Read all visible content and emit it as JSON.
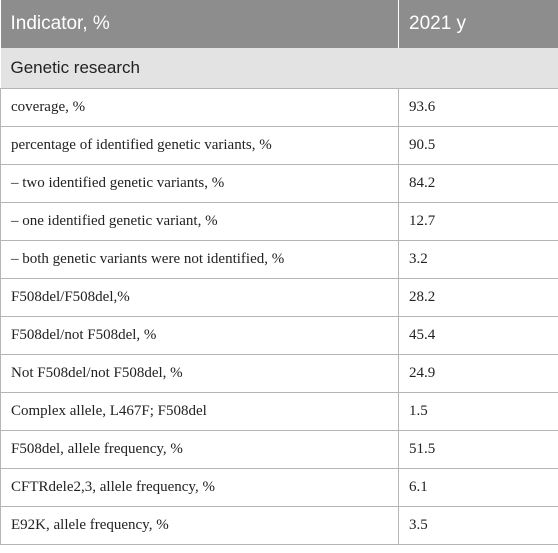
{
  "table": {
    "headers": [
      "Indicator, %",
      "2021 y"
    ],
    "section_title": "Genetic research",
    "rows": [
      [
        "coverage, %",
        "93.6"
      ],
      [
        "percentage of identified genetic variants, %",
        "90.5"
      ],
      [
        "– two identified genetic variants, %",
        "84.2"
      ],
      [
        "– one identified genetic variant, %",
        "12.7"
      ],
      [
        "– both genetic variants were not identified, %",
        "3.2"
      ],
      [
        "F508del/F508del,%",
        "28.2"
      ],
      [
        "F508del/not F508del, %",
        "45.4"
      ],
      [
        "Not F508del/not F508del, %",
        "24.9"
      ],
      [
        "Complex allele, L467F; F508del",
        "1.5"
      ],
      [
        "F508del, allele frequency, %",
        "51.5"
      ],
      [
        "CFTRdele2,3, allele frequency, %",
        "6.1"
      ],
      [
        "E92K, allele frequency, %",
        "3.5"
      ]
    ]
  },
  "colors": {
    "header_bg": "#8d8d8d",
    "section_bg": "#e3e3e3",
    "border": "#b5b5b5"
  }
}
